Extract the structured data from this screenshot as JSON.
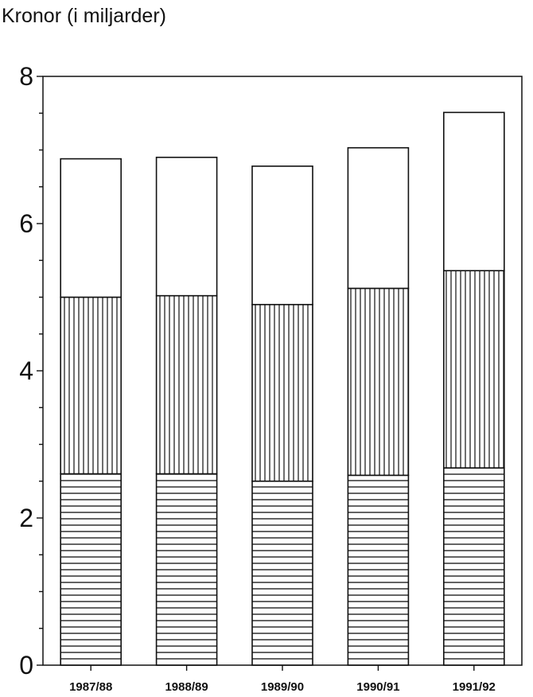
{
  "chart_data": {
    "type": "bar",
    "stacked": true,
    "title": "",
    "ylabel": "Kronor  (i miljarder)",
    "xlabel": "",
    "categories": [
      "1987/88",
      "1988/89",
      "1989/90",
      "1990/91",
      "1991/92"
    ],
    "series": [
      {
        "pattern": "horizontal-hatch",
        "values": [
          2.6,
          2.6,
          2.5,
          2.58,
          2.68
        ]
      },
      {
        "pattern": "vertical-hatch",
        "values": [
          2.4,
          2.42,
          2.4,
          2.54,
          2.68
        ]
      },
      {
        "pattern": "blank",
        "values": [
          1.88,
          1.88,
          1.88,
          1.91,
          2.15
        ]
      }
    ],
    "ylim": [
      0,
      8
    ],
    "yticks": [
      0,
      2,
      4,
      6,
      8
    ],
    "y_minor_step": 0.5,
    "grid": false,
    "legend": "none",
    "colors": {
      "ink": "#111111",
      "background": "#ffffff"
    }
  }
}
